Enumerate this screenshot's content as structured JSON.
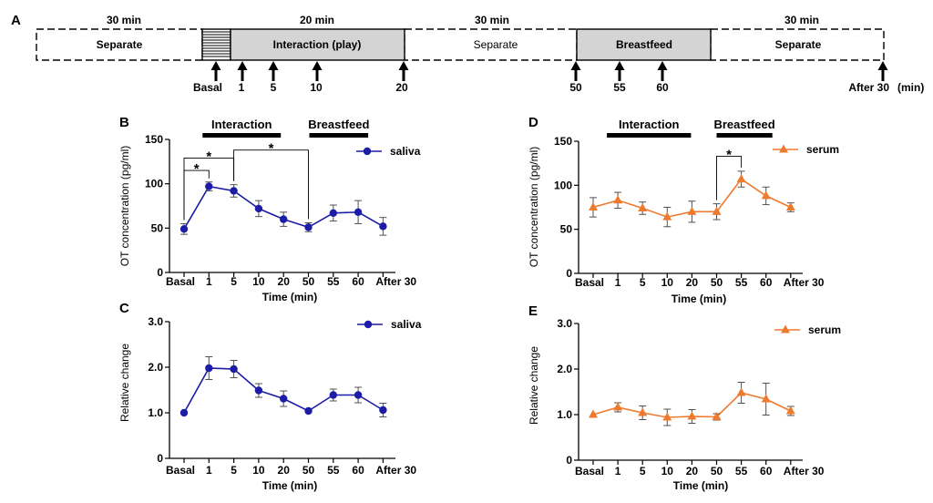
{
  "timeline": {
    "panel_label": "A",
    "segments": [
      {
        "label": "Separate",
        "duration": "30 min"
      },
      {
        "label": "Interaction (play)",
        "duration": "20 min"
      },
      {
        "label": "Separate",
        "duration": "30 min"
      },
      {
        "label": "Breastfeed"
      },
      {
        "label": "Separate",
        "duration": "30 min"
      }
    ],
    "sample_points": [
      "Basal",
      "1",
      "5",
      "10",
      "20",
      "50",
      "55",
      "60",
      "After 30"
    ],
    "unit": "(min)"
  },
  "colors": {
    "saliva": "#1c1ca6",
    "serum": "#ee7a2e",
    "error_bar": "#505050",
    "phase_box": "#d4d4d4",
    "ink": "#000000"
  },
  "chart_data": [
    {
      "panel_label": "B",
      "type": "line",
      "categories": [
        "Basal",
        "1",
        "5",
        "10",
        "20",
        "50",
        "55",
        "60",
        "After 30"
      ],
      "xlabel": "Time (min)",
      "ylabel": "OT concentration (pg/ml)",
      "ylim": [
        0,
        150
      ],
      "yticks": [
        0,
        50,
        100,
        150
      ],
      "ytick_labels": [
        "0",
        "50",
        "100",
        "150"
      ],
      "series": [
        {
          "name": "saliva",
          "marker": "circle",
          "color": "#1c1ca6",
          "values": [
            49,
            97,
            92,
            72,
            60,
            51,
            67,
            68,
            52
          ],
          "errors": [
            6,
            5,
            7,
            9,
            8,
            5,
            9,
            13,
            10
          ]
        }
      ],
      "phases": [
        {
          "label": "Interaction",
          "span": [
            1,
            4
          ]
        },
        {
          "label": "Breastfeed",
          "span": [
            5,
            7
          ]
        }
      ],
      "significance": [
        {
          "pair": [
            0,
            1
          ],
          "label": "*"
        },
        {
          "pair": [
            0,
            2
          ],
          "label": "*"
        },
        {
          "pair": [
            2,
            5
          ],
          "label": "*"
        }
      ],
      "legend": "top-right",
      "grid": false
    },
    {
      "panel_label": "C",
      "type": "line",
      "categories": [
        "Basal",
        "1",
        "5",
        "10",
        "20",
        "50",
        "55",
        "60",
        "After 30"
      ],
      "xlabel": "Time (min)",
      "ylabel": "Relative change",
      "ylim": [
        0,
        3
      ],
      "yticks": [
        0,
        1,
        2,
        3
      ],
      "ytick_labels": [
        "0",
        "1.0",
        "2.0",
        "3.0"
      ],
      "series": [
        {
          "name": "saliva",
          "marker": "circle",
          "color": "#1c1ca6",
          "values": [
            1.0,
            1.98,
            1.96,
            1.49,
            1.31,
            1.04,
            1.39,
            1.39,
            1.06
          ],
          "errors": [
            0,
            0.25,
            0.19,
            0.15,
            0.17,
            0.02,
            0.13,
            0.17,
            0.15
          ]
        }
      ],
      "legend": "top-right",
      "grid": false
    },
    {
      "panel_label": "D",
      "type": "line",
      "categories": [
        "Basal",
        "1",
        "5",
        "10",
        "20",
        "50",
        "55",
        "60",
        "After 30"
      ],
      "xlabel": "Time (min)",
      "ylabel": "OT concentration (pg/ml)",
      "ylim": [
        0,
        150
      ],
      "yticks": [
        0,
        50,
        100,
        150
      ],
      "ytick_labels": [
        "0",
        "50",
        "100",
        "150"
      ],
      "series": [
        {
          "name": "serum",
          "marker": "triangle",
          "color": "#ee7a2e",
          "values": [
            75,
            83,
            74,
            64,
            70,
            70,
            107,
            88,
            75
          ],
          "errors": [
            11,
            9,
            7,
            11,
            12,
            9,
            9,
            10,
            5
          ]
        }
      ],
      "phases": [
        {
          "label": "Interaction",
          "span": [
            1,
            4
          ]
        },
        {
          "label": "Breastfeed",
          "span": [
            5,
            7
          ]
        }
      ],
      "significance": [
        {
          "pair": [
            5,
            6
          ],
          "label": "*"
        }
      ],
      "legend": "top-right",
      "grid": false
    },
    {
      "panel_label": "E",
      "type": "line",
      "categories": [
        "Basal",
        "1",
        "5",
        "10",
        "20",
        "50",
        "55",
        "60",
        "After 30"
      ],
      "xlabel": "Time (min)",
      "ylabel": "Relative change",
      "ylim": [
        0,
        3
      ],
      "yticks": [
        0,
        1,
        2,
        3
      ],
      "ytick_labels": [
        "0",
        "1.0",
        "2.0",
        "3.0"
      ],
      "series": [
        {
          "name": "serum",
          "marker": "triangle",
          "color": "#ee7a2e",
          "values": [
            1.0,
            1.16,
            1.04,
            0.94,
            0.96,
            0.95,
            1.48,
            1.34,
            1.08
          ],
          "errors": [
            0,
            0.1,
            0.15,
            0.18,
            0.15,
            0.07,
            0.23,
            0.35,
            0.1
          ]
        }
      ],
      "legend": "top-right",
      "grid": false
    }
  ]
}
